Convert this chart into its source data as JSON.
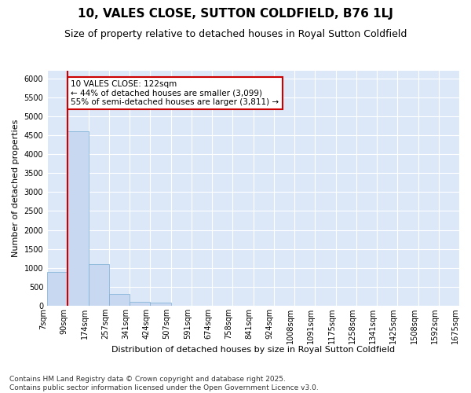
{
  "title": "10, VALES CLOSE, SUTTON COLDFIELD, B76 1LJ",
  "subtitle": "Size of property relative to detached houses in Royal Sutton Coldfield",
  "xlabel": "Distribution of detached houses by size in Royal Sutton Coldfield",
  "ylabel": "Number of detached properties",
  "bin_labels": [
    "7sqm",
    "90sqm",
    "174sqm",
    "257sqm",
    "341sqm",
    "424sqm",
    "507sqm",
    "591sqm",
    "674sqm",
    "758sqm",
    "841sqm",
    "924sqm",
    "1008sqm",
    "1091sqm",
    "1175sqm",
    "1258sqm",
    "1341sqm",
    "1425sqm",
    "1508sqm",
    "1592sqm",
    "1675sqm"
  ],
  "bar_values": [
    900,
    4600,
    1100,
    300,
    100,
    75,
    0,
    0,
    0,
    0,
    0,
    0,
    0,
    0,
    0,
    0,
    0,
    0,
    0,
    0
  ],
  "bar_color": "#c8d8f0",
  "bar_edge_color": "#7aadd4",
  "vline_color": "#cc0000",
  "annotation_text": "10 VALES CLOSE: 122sqm\n← 44% of detached houses are smaller (3,099)\n55% of semi-detached houses are larger (3,811) →",
  "annotation_box_color": "#ffffff",
  "annotation_box_edge_color": "#cc0000",
  "ylim": [
    0,
    6200
  ],
  "yticks": [
    0,
    500,
    1000,
    1500,
    2000,
    2500,
    3000,
    3500,
    4000,
    4500,
    5000,
    5500,
    6000
  ],
  "footer": "Contains HM Land Registry data © Crown copyright and database right 2025.\nContains public sector information licensed under the Open Government Licence v3.0.",
  "fig_bg_color": "#ffffff",
  "plot_bg_color": "#dce8f8",
  "grid_color": "#ffffff",
  "title_fontsize": 11,
  "subtitle_fontsize": 9,
  "label_fontsize": 8,
  "tick_fontsize": 7,
  "footer_fontsize": 6.5,
  "vline_x_bin": 1
}
